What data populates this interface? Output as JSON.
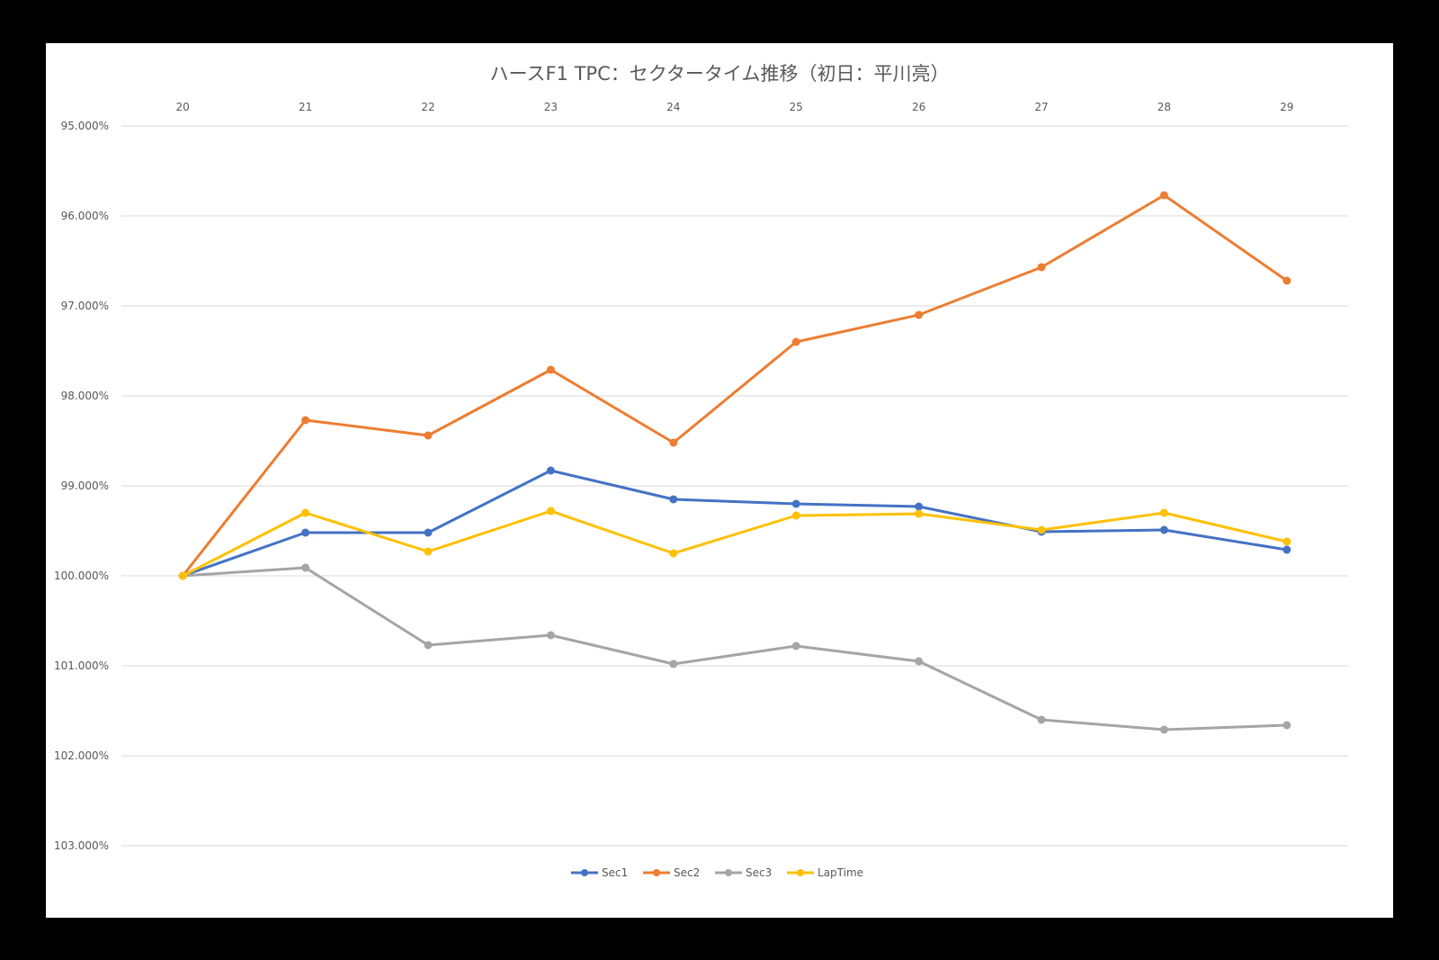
{
  "chart_data": {
    "type": "line",
    "title": "ハースF1 TPC：セクタータイム推移（初日：平川亮）",
    "xlabel": "",
    "ylabel": "",
    "x": [
      "20",
      "21",
      "22",
      "23",
      "24",
      "25",
      "26",
      "27",
      "28",
      "29"
    ],
    "y_ticks": [
      "95.000%",
      "96.000%",
      "97.000%",
      "98.000%",
      "99.000%",
      "100.000%",
      "101.000%",
      "102.000%",
      "103.000%"
    ],
    "ylim": [
      95,
      103
    ],
    "y_axis_reversed": true,
    "x_axis_position": "top",
    "grid": true,
    "legend_position": "bottom",
    "series": [
      {
        "name": "Sec1",
        "color": "#4472C4",
        "values": [
          100.0,
          99.52,
          99.52,
          98.83,
          99.15,
          99.2,
          99.23,
          99.51,
          99.49,
          99.71
        ]
      },
      {
        "name": "Sec2",
        "color": "#ED7D31",
        "values": [
          100.0,
          98.27,
          98.44,
          97.71,
          98.52,
          97.4,
          97.1,
          96.57,
          95.77,
          96.72
        ]
      },
      {
        "name": "Sec3",
        "color": "#A5A5A5",
        "values": [
          100.0,
          99.91,
          100.77,
          100.66,
          100.98,
          100.78,
          100.95,
          101.6,
          101.71,
          101.66
        ]
      },
      {
        "name": "LapTime",
        "color": "#FFC000",
        "values": [
          100.0,
          99.3,
          99.73,
          99.28,
          99.75,
          99.33,
          99.31,
          99.49,
          99.3,
          99.62
        ]
      }
    ]
  }
}
